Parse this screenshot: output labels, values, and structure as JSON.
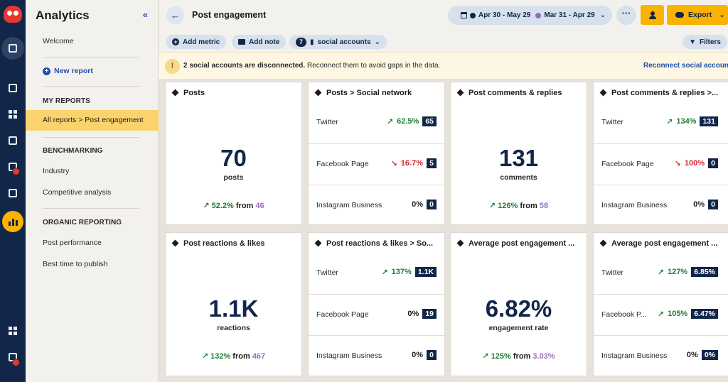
{
  "sidebar": {
    "title": "Analytics",
    "collapse": "«",
    "welcome": "Welcome",
    "new_report": "New report",
    "my_reports_heading": "MY REPORTS",
    "active_item": "All reports > Post engagement",
    "benchmarking_heading": "BENCHMARKING",
    "industry": "Industry",
    "competitive": "Competitive analysis",
    "organic_heading": "ORGANIC REPORTING",
    "post_performance": "Post performance",
    "best_time": "Best time to publish"
  },
  "header": {
    "back": "←",
    "title": "Post engagement",
    "date_current": "Apr 30 - May 29",
    "date_compare": "Mar 31 - Apr 29",
    "more": "···",
    "export": "Export",
    "caret": "⌄"
  },
  "toolbar": {
    "add_metric": "Add metric",
    "add_note": "Add note",
    "accounts_count": "7",
    "accounts_label": "social accounts",
    "filters": "Filters"
  },
  "alert": {
    "bold": "2 social accounts are disconnected.",
    "rest": " Reconnect them to avoid gaps in the data.",
    "link": "Reconnect social accounts"
  },
  "cards": {
    "posts": {
      "title": "Posts",
      "value": "70",
      "unit": "posts",
      "pct": "52.2%",
      "from": "from",
      "prev": "46"
    },
    "posts_sn": {
      "title": "Posts > Social network",
      "rows": [
        {
          "label": "Twitter",
          "pct": "62.5%",
          "value": "65"
        },
        {
          "label": "Facebook Page",
          "pct": "16.7%",
          "value": "5"
        },
        {
          "label": "Instagram Business",
          "pct": "0%",
          "value": "0"
        }
      ]
    },
    "comments": {
      "title": "Post comments & replies",
      "value": "131",
      "unit": "comments",
      "pct": "126%",
      "from": "from",
      "prev": "58"
    },
    "comments_sn": {
      "title": "Post comments & replies >...",
      "rows": [
        {
          "label": "Twitter",
          "pct": "134%",
          "value": "131"
        },
        {
          "label": "Facebook Page",
          "pct": "100%",
          "value": "0"
        },
        {
          "label": "Instagram Business",
          "pct": "0%",
          "value": "0"
        }
      ]
    },
    "reactions": {
      "title": "Post reactions & likes",
      "value": "1.1K",
      "unit": "reactions",
      "pct": "132%",
      "from": "from",
      "prev": "467"
    },
    "reactions_sn": {
      "title": "Post reactions & likes > So...",
      "rows": [
        {
          "label": "Twitter",
          "pct": "137%",
          "value": "1.1K"
        },
        {
          "label": "Facebook Page",
          "pct": "0%",
          "value": "19"
        },
        {
          "label": "Instagram Business",
          "pct": "0%",
          "value": "0"
        }
      ]
    },
    "engagement": {
      "title": "Average post engagement ...",
      "value": "6.82%",
      "unit": "engagement rate",
      "pct": "125%",
      "from": "from",
      "prev": "3.03%"
    },
    "engagement_sn": {
      "title": "Average post engagement ...",
      "rows": [
        {
          "label": "Twitter",
          "pct": "127%",
          "value": "6.85%"
        },
        {
          "label": "Facebook P...",
          "pct": "105%",
          "value": "6.47%"
        },
        {
          "label": "Instagram Business",
          "pct": "0%",
          "value": "0%"
        }
      ]
    }
  },
  "colors": {
    "navy": "#12264a",
    "accent_yellow": "#f9b300",
    "positive": "#1e7d32",
    "negative": "#d4262b",
    "previous": "#9b6fbf",
    "compare_dot": "#8e6cc0"
  }
}
